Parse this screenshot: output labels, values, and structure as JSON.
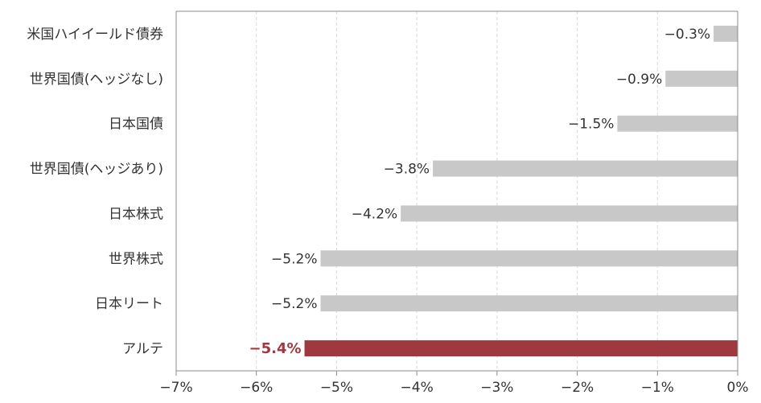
{
  "chart_data": {
    "type": "bar",
    "orientation": "horizontal",
    "title": "",
    "xlabel": "",
    "ylabel": "",
    "categories": [
      "米国ハイイールド債券",
      "世界国債(ヘッジなし)",
      "日本国債",
      "世界国債(ヘッジあり)",
      "日本株式",
      "世界株式",
      "日本リート",
      "アルテ"
    ],
    "values": [
      -0.3,
      -0.9,
      -1.5,
      -3.8,
      -4.2,
      -5.2,
      -5.2,
      -5.4
    ],
    "value_labels": [
      "−0.3%",
      "−0.9%",
      "−1.5%",
      "−3.8%",
      "−4.2%",
      "−5.2%",
      "−5.2%",
      "−5.4%"
    ],
    "highlight_index": 7,
    "xlim": [
      -7,
      0
    ],
    "xticks": [
      -7,
      -6,
      -5,
      -4,
      -3,
      -2,
      -1,
      0
    ],
    "xtick_labels": [
      "−7%",
      "−6%",
      "−5%",
      "−4%",
      "−3%",
      "−2%",
      "−1%",
      "0%"
    ],
    "grid": "vertical dashed",
    "legend": "none",
    "colors": {
      "bar": "#c8c8c8",
      "highlight_bar": "#a0383f",
      "highlight_label": "#a0383f",
      "grid": "#d9d9d9",
      "axis": "#8c8c8c"
    }
  }
}
